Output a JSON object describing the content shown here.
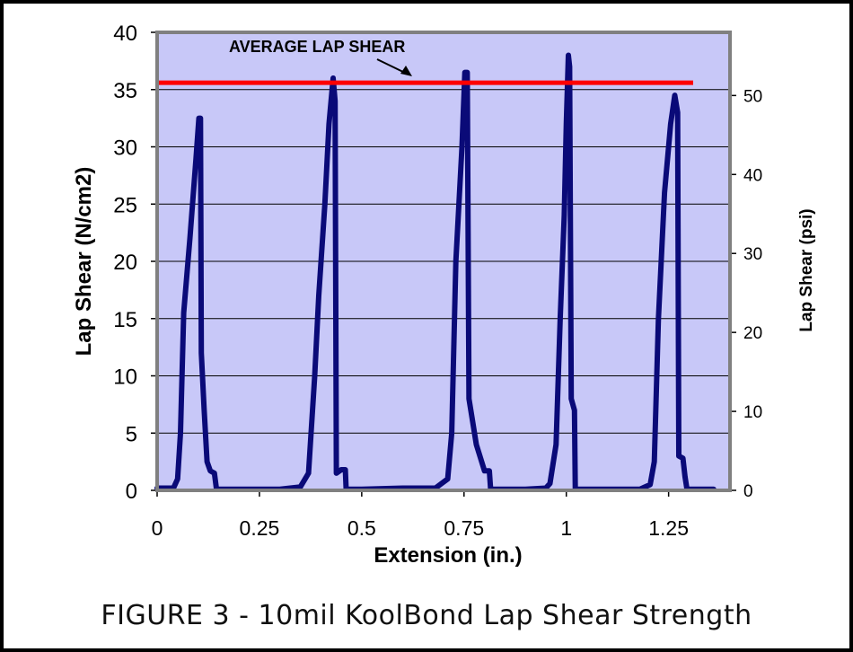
{
  "caption": "FIGURE 3 - 10mil KoolBond Lap Shear Strength",
  "chart_data": {
    "type": "line",
    "title": "",
    "xlabel": "Extension (in.)",
    "ylabel": "Lap Shear (N/cm2)",
    "y2label": "Lap Shear (psi)",
    "xlim": [
      0,
      1.4
    ],
    "ylim": [
      0,
      40
    ],
    "y2lim": [
      0,
      58
    ],
    "x_ticks": [
      0,
      0.25,
      0.5,
      0.75,
      1,
      1.25
    ],
    "x_tick_labels": [
      "0",
      "0.25",
      "0.5",
      "0.75",
      "1",
      "1.25"
    ],
    "y_ticks": [
      0,
      5,
      10,
      15,
      20,
      25,
      30,
      35,
      40
    ],
    "y_tick_labels": [
      "0",
      "5",
      "10",
      "15",
      "20",
      "25",
      "30",
      "35",
      "40"
    ],
    "y2_ticks": [
      0,
      10,
      20,
      30,
      40,
      50
    ],
    "y2_tick_labels": [
      "0",
      "10",
      "20",
      "30",
      "40",
      "50"
    ],
    "grid": true,
    "colors": {
      "plot_bg": "#c8c8f8",
      "series": "#0a0a78",
      "average": "#ff0000",
      "frame": "#808080",
      "grid": "#000000"
    },
    "annotation": {
      "text": "AVERAGE LAP SHEAR",
      "points_to": "average line"
    },
    "average_line": {
      "name": "Average Lap Shear",
      "y": 35.6,
      "x_start": 0,
      "x_end": 1.31
    },
    "series": [
      {
        "name": "Lap Shear",
        "points": [
          [
            0,
            0.2
          ],
          [
            0.04,
            0.2
          ],
          [
            0.05,
            1
          ],
          [
            0.057,
            5
          ],
          [
            0.065,
            15.5
          ],
          [
            0.08,
            22
          ],
          [
            0.095,
            29
          ],
          [
            0.102,
            32.5
          ],
          [
            0.106,
            32.5
          ],
          [
            0.108,
            12
          ],
          [
            0.115,
            7
          ],
          [
            0.122,
            2.5
          ],
          [
            0.13,
            1.7
          ],
          [
            0.14,
            1.5
          ],
          [
            0.145,
            0.1
          ],
          [
            0.16,
            0.1
          ],
          [
            0.2,
            0.1
          ],
          [
            0.3,
            0.1
          ],
          [
            0.35,
            0.3
          ],
          [
            0.37,
            1.5
          ],
          [
            0.385,
            10
          ],
          [
            0.395,
            17
          ],
          [
            0.41,
            25
          ],
          [
            0.42,
            32
          ],
          [
            0.43,
            36
          ],
          [
            0.435,
            34
          ],
          [
            0.438,
            1.5
          ],
          [
            0.45,
            1.8
          ],
          [
            0.46,
            1.8
          ],
          [
            0.462,
            0.1
          ],
          [
            0.5,
            0.1
          ],
          [
            0.6,
            0.2
          ],
          [
            0.68,
            0.2
          ],
          [
            0.71,
            1
          ],
          [
            0.72,
            5
          ],
          [
            0.73,
            20
          ],
          [
            0.745,
            30
          ],
          [
            0.752,
            36.5
          ],
          [
            0.758,
            36.5
          ],
          [
            0.762,
            8
          ],
          [
            0.78,
            4
          ],
          [
            0.8,
            1.7
          ],
          [
            0.812,
            1.7
          ],
          [
            0.815,
            0.1
          ],
          [
            0.9,
            0.1
          ],
          [
            0.95,
            0.2
          ],
          [
            0.96,
            0.6
          ],
          [
            0.975,
            4
          ],
          [
            0.985,
            15
          ],
          [
            0.995,
            24
          ],
          [
            1.0,
            32
          ],
          [
            1.005,
            38
          ],
          [
            1.008,
            37
          ],
          [
            1.012,
            8
          ],
          [
            1.02,
            7
          ],
          [
            1.022,
            0.1
          ],
          [
            1.1,
            0.1
          ],
          [
            1.18,
            0.1
          ],
          [
            1.205,
            0.5
          ],
          [
            1.215,
            2.5
          ],
          [
            1.225,
            15
          ],
          [
            1.24,
            26
          ],
          [
            1.255,
            32
          ],
          [
            1.265,
            34.5
          ],
          [
            1.272,
            33
          ],
          [
            1.275,
            3
          ],
          [
            1.285,
            2.8
          ],
          [
            1.29,
            1.2
          ],
          [
            1.295,
            0.1
          ],
          [
            1.36,
            0.1
          ]
        ]
      }
    ]
  }
}
